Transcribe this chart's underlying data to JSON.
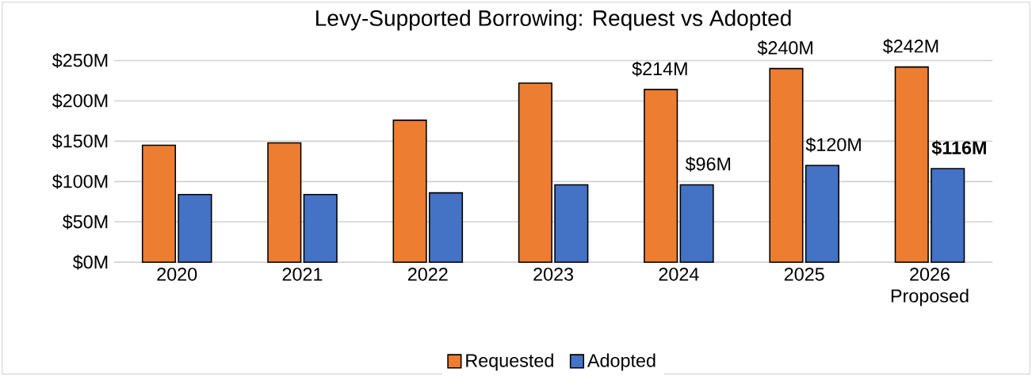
{
  "chart_data": {
    "type": "bar",
    "title": "Levy-Supported Borrowing: Request vs Adopted",
    "categories": [
      "2020",
      "2021",
      "2022",
      "2023",
      "2024",
      "2025",
      "2026 Proposed"
    ],
    "series": [
      {
        "name": "Requested",
        "color": "#ed7d31",
        "values": [
          145,
          148,
          176,
          222,
          214,
          240,
          242
        ],
        "value_labels": [
          null,
          null,
          null,
          null,
          "$214M",
          "$240M",
          "$242M"
        ]
      },
      {
        "name": "Adopted",
        "color": "#4472c4",
        "values": [
          84,
          84,
          86,
          96,
          96,
          120,
          116
        ],
        "value_labels": [
          null,
          null,
          null,
          null,
          "$96M",
          "$120M",
          "**$116M**"
        ]
      }
    ],
    "ylim": [
      0,
      250
    ],
    "yticks": [
      {
        "value": 0,
        "label": "$0M"
      },
      {
        "value": 50,
        "label": "$50M"
      },
      {
        "value": 100,
        "label": "$100M"
      },
      {
        "value": 150,
        "label": "$150M"
      },
      {
        "value": 200,
        "label": "$200M"
      },
      {
        "value": 250,
        "label": "$250M"
      }
    ],
    "grid": "y",
    "legend": "bottom"
  }
}
